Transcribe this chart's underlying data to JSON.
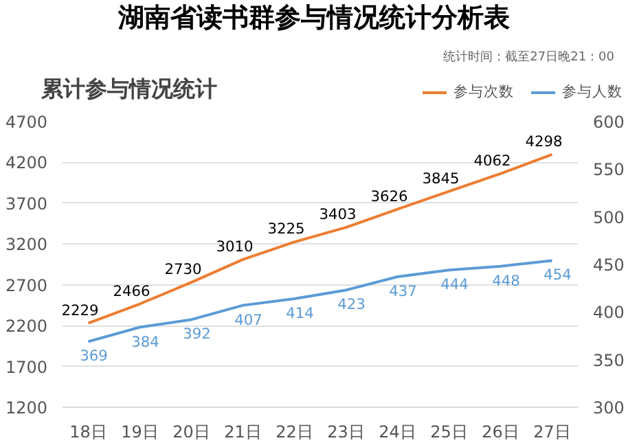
{
  "chart_data": {
    "type": "line",
    "title": "湖南省读书群参与情况统计分析表",
    "subtitle": "累计参与情况统计",
    "annotations": [
      "统计时间：截至27日晚21：00"
    ],
    "categories": [
      "18日",
      "19日",
      "20日",
      "21日",
      "22日",
      "23日",
      "24日",
      "25日",
      "26日",
      "27日"
    ],
    "series": [
      {
        "name": "参与次数",
        "color": "#ed7d31",
        "values": [
          2229,
          2466,
          2730,
          3010,
          3225,
          3403,
          3626,
          3845,
          4062,
          4298
        ]
      },
      {
        "name": "参与人数",
        "color": "#5b9bd5",
        "axis": "y2",
        "values": [
          369,
          384,
          392,
          407,
          414,
          423,
          437,
          444,
          448,
          454
        ]
      }
    ],
    "ylim": [
      1200,
      4700
    ],
    "yticks": [
      1200,
      1700,
      2200,
      2700,
      3200,
      3700,
      4200,
      4700
    ],
    "y2lim": [
      300,
      600
    ],
    "y2ticks": [
      300,
      350,
      400,
      450,
      500,
      550,
      600
    ],
    "grid": "y",
    "legend": "top right",
    "data_labels": true,
    "marker": "none",
    "line_style": "solid"
  }
}
